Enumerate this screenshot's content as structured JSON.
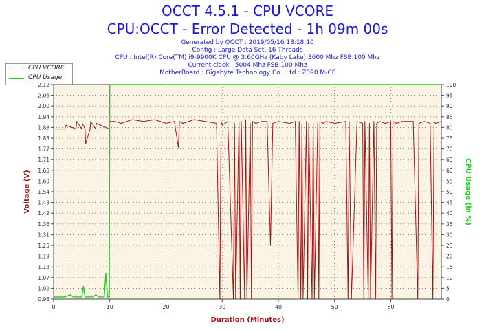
{
  "header": {
    "title": "OCCT 4.5.1 - CPU VCORE",
    "subtitle": "CPU:OCCT - Error Detected - 1h 09m 00s",
    "info_lines": [
      "Generated by OCCT : 2019/05/16 18:18:10",
      "Config : Large Data Set, 16 Threads",
      "CPU : Intel(R) Core(TM) i9-9900K CPU @ 3.60GHz (Kaby Lake) 3600 Mhz FSB 100 Mhz",
      "Current clock : 5004 Mhz FSB 100 Mhz",
      "MotherBoard : Gigabyte Technology Co., Ltd.: Z390 M-CF"
    ]
  },
  "colors": {
    "vcore": "#a31515",
    "usage": "#22cc22",
    "plot_bg": "#fbf4e4",
    "title": "#1a1ad6"
  },
  "chart_data": {
    "type": "line",
    "xlabel": "Duration (Minutes)",
    "ylabel": "Voltage (V)",
    "y2label": "CPU Usage (in %)",
    "xlim": [
      0,
      69
    ],
    "ylim": [
      0.96,
      2.12
    ],
    "y2lim": [
      0,
      100
    ],
    "x_ticks": [
      "0",
      "10",
      "20",
      "30",
      "40",
      "50",
      "60"
    ],
    "y_ticks": [
      "0.96",
      "1.02",
      "1.07",
      "1.13",
      "1.19",
      "1.25",
      "1.31",
      "1.36",
      "1.42",
      "1.48",
      "1.54",
      "1.60",
      "1.65",
      "1.71",
      "1.77",
      "1.83",
      "1.88",
      "1.94",
      "2.00",
      "2.06",
      "2.12"
    ],
    "y2_ticks": [
      "0",
      "5",
      "10",
      "15",
      "20",
      "25",
      "30",
      "35",
      "40",
      "45",
      "50",
      "55",
      "60",
      "65",
      "70",
      "75",
      "80",
      "85",
      "90",
      "95",
      "100"
    ],
    "grid": true,
    "legend_position": "top-left outside",
    "series": [
      {
        "name": "CPU VCORE",
        "axis": "left",
        "x": [
          0,
          2,
          2.2,
          4,
          4.1,
          5,
          5.1,
          5.6,
          5.7,
          6.5,
          6.6,
          7.5,
          7.6,
          9.9,
          10,
          11,
          12,
          14,
          16,
          18,
          20,
          21.5,
          22.2,
          22.4,
          23,
          25,
          27,
          29,
          29.6,
          29.8,
          30,
          31,
          32,
          32.2,
          32.4,
          33,
          33.2,
          33.4,
          34,
          34.2,
          34.4,
          35,
          35.2,
          35.4,
          36,
          37,
          38,
          38.6,
          39,
          40,
          42,
          43,
          43.5,
          43.7,
          44,
          44.2,
          44.4,
          45,
          45.2,
          45.4,
          46,
          46.2,
          46.4,
          47,
          47.2,
          47.4,
          48,
          48.5,
          50,
          52,
          52.4,
          52.6,
          53,
          54,
          55,
          55.2,
          55.4,
          56,
          56.2,
          56.4,
          57,
          57.3,
          57.5,
          58,
          59,
          60,
          60.2,
          60.4,
          61,
          62,
          64,
          64.8,
          65,
          66,
          67,
          67.5,
          67.7,
          68,
          69
        ],
        "values": [
          1.88,
          1.88,
          1.9,
          1.88,
          1.92,
          1.88,
          1.91,
          1.88,
          1.8,
          1.88,
          1.92,
          1.88,
          1.91,
          1.88,
          1.92,
          1.92,
          1.91,
          1.93,
          1.92,
          1.93,
          1.91,
          1.92,
          1.78,
          1.92,
          1.91,
          1.93,
          1.92,
          1.91,
          0.96,
          1.92,
          1.9,
          1.92,
          0.96,
          1.91,
          0.96,
          1.92,
          0.96,
          1.92,
          0.96,
          1.93,
          0.96,
          1.91,
          0.96,
          1.92,
          1.91,
          1.92,
          1.92,
          1.25,
          1.91,
          1.92,
          1.91,
          1.92,
          0.96,
          1.92,
          0.96,
          1.91,
          0.96,
          1.92,
          0.96,
          1.91,
          0.96,
          1.92,
          0.96,
          1.91,
          0.96,
          1.92,
          1.91,
          1.92,
          1.91,
          1.92,
          0.96,
          1.92,
          0.96,
          1.92,
          1.91,
          0.96,
          1.92,
          0.96,
          1.91,
          0.96,
          1.92,
          0.96,
          1.91,
          1.92,
          1.91,
          1.92,
          0.96,
          1.92,
          1.91,
          1.92,
          1.92,
          0.96,
          1.91,
          1.92,
          1.91,
          0.96,
          1.92,
          1.91,
          1.92
        ]
      },
      {
        "name": "CPU Usage",
        "axis": "right",
        "x": [
          0,
          1,
          2,
          3,
          3.5,
          4,
          5,
          5.3,
          5.6,
          6,
          7,
          7.5,
          8,
          9,
          9.3,
          9.6,
          9.8,
          9.9,
          10,
          69
        ],
        "values": [
          1,
          1,
          1,
          2,
          1,
          1,
          1,
          6,
          1,
          1,
          1,
          2,
          1,
          1,
          12,
          1,
          1,
          1,
          100,
          100
        ]
      }
    ]
  }
}
